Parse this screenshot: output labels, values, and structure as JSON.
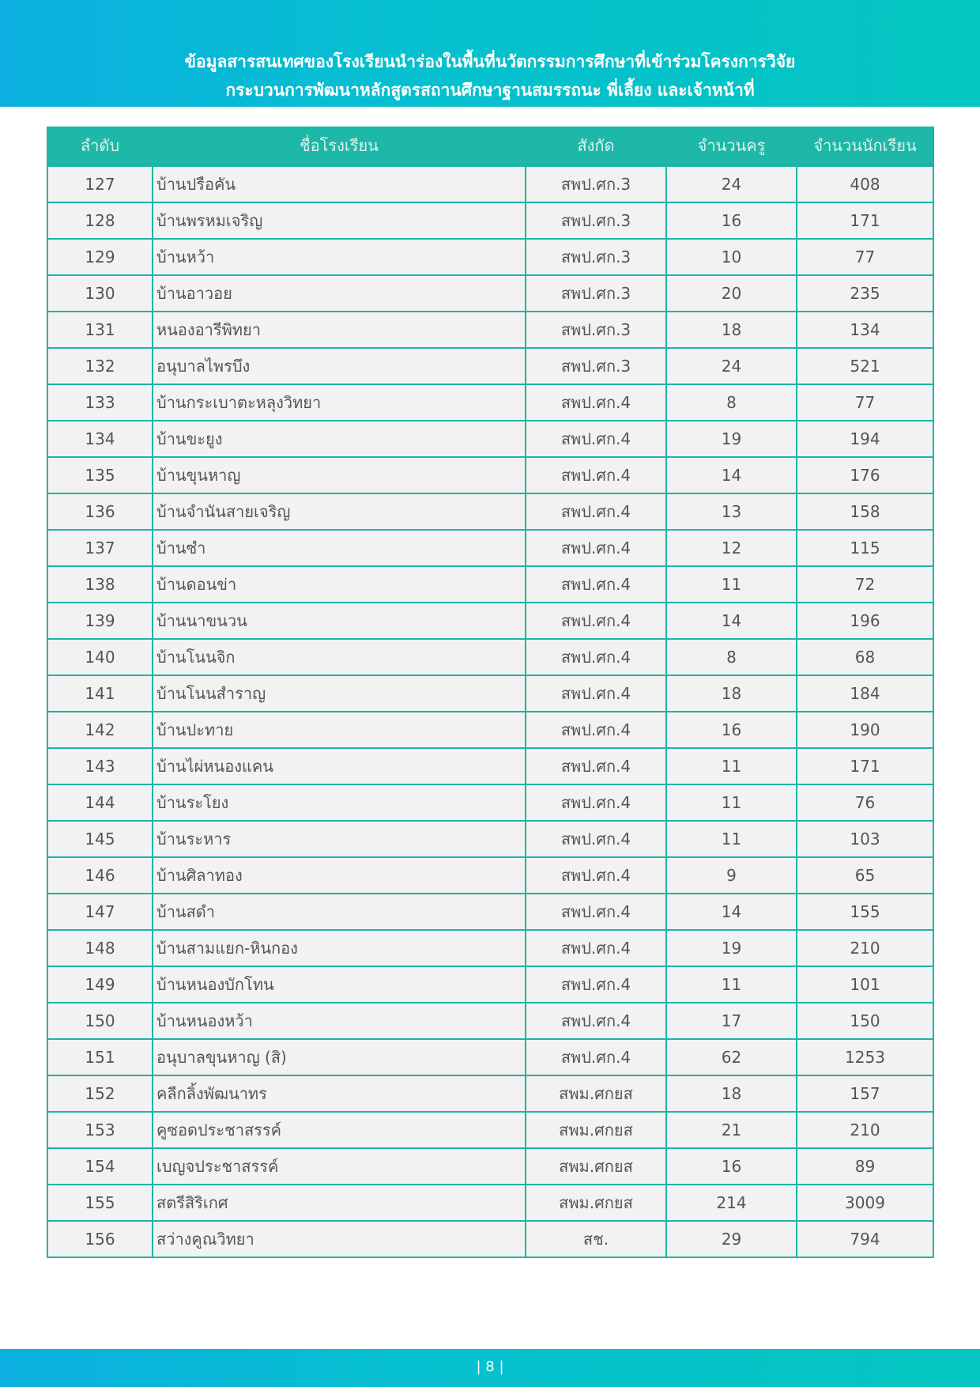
{
  "header": {
    "title_line1": "ข้อมูลสารสนเทศของโรงเรียนนำร่องในพื้นที่นวัตกรรมการศึกษาที่เข้าร่วมโครงการวิจัย",
    "title_line2": "กระบวนการพัฒนาหลักสูตรสถานศึกษาฐานสมรรถนะ พี่เลี้ยง และเจ้าหน้าที่"
  },
  "table": {
    "columns": [
      "ลำดับ",
      "ชื่อโรงเรียน",
      "สังกัด",
      "จำนวนครู",
      "จำนวนนักเรียน"
    ],
    "rows": [
      [
        "127",
        "บ้านปรือคัน",
        "สพป.ศก.3",
        "24",
        "408"
      ],
      [
        "128",
        "บ้านพรหมเจริญ",
        "สพป.ศก.3",
        "16",
        "171"
      ],
      [
        "129",
        "บ้านหว้า",
        "สพป.ศก.3",
        "10",
        "77"
      ],
      [
        "130",
        "บ้านอาวอย",
        "สพป.ศก.3",
        "20",
        "235"
      ],
      [
        "131",
        "หนองอารีพิทยา",
        "สพป.ศก.3",
        "18",
        "134"
      ],
      [
        "132",
        "อนุบาลไพรบึง",
        "สพป.ศก.3",
        "24",
        "521"
      ],
      [
        "133",
        "บ้านกระเบาตะหลุงวิทยา",
        "สพป.ศก.4",
        "8",
        "77"
      ],
      [
        "134",
        "บ้านขะยูง",
        "สพป.ศก.4",
        "19",
        "194"
      ],
      [
        "135",
        "บ้านขุนหาญ",
        "สพป.ศก.4",
        "14",
        "176"
      ],
      [
        "136",
        "บ้านจำนันสายเจริญ",
        "สพป.ศก.4",
        "13",
        "158"
      ],
      [
        "137",
        "บ้านซำ",
        "สพป.ศก.4",
        "12",
        "115"
      ],
      [
        "138",
        "บ้านดอนข่า",
        "สพป.ศก.4",
        "11",
        "72"
      ],
      [
        "139",
        "บ้านนาขนวน",
        "สพป.ศก.4",
        "14",
        "196"
      ],
      [
        "140",
        "บ้านโนนจิก",
        "สพป.ศก.4",
        "8",
        "68"
      ],
      [
        "141",
        "บ้านโนนสำราญ",
        "สพป.ศก.4",
        "18",
        "184"
      ],
      [
        "142",
        "บ้านปะทาย",
        "สพป.ศก.4",
        "16",
        "190"
      ],
      [
        "143",
        "บ้านไผ่หนองแคน",
        "สพป.ศก.4",
        "11",
        "171"
      ],
      [
        "144",
        "บ้านระโยง",
        "สพป.ศก.4",
        "11",
        "76"
      ],
      [
        "145",
        "บ้านระหาร",
        "สพป.ศก.4",
        "11",
        "103"
      ],
      [
        "146",
        "บ้านศิลาทอง",
        "สพป.ศก.4",
        "9",
        "65"
      ],
      [
        "147",
        "บ้านสดำ",
        "สพป.ศก.4",
        "14",
        "155"
      ],
      [
        "148",
        "บ้านสามแยก-หินกอง",
        "สพป.ศก.4",
        "19",
        "210"
      ],
      [
        "149",
        "บ้านหนองบักโทน",
        "สพป.ศก.4",
        "11",
        "101"
      ],
      [
        "150",
        "บ้านหนองหว้า",
        "สพป.ศก.4",
        "17",
        "150"
      ],
      [
        "151",
        "อนุบาลขุนหาญ (สิ)",
        "สพป.ศก.4",
        "62",
        "1253"
      ],
      [
        "152",
        "คลีกลิ้งพัฒนาทร",
        "สพม.ศกยส",
        "18",
        "157"
      ],
      [
        "153",
        "คูซอดประชาสรรค์",
        "สพม.ศกยส",
        "21",
        "210"
      ],
      [
        "154",
        "เบญจประชาสรรค์",
        "สพม.ศกยส",
        "16",
        "89"
      ],
      [
        "155",
        "สตรีสิริเกศ",
        "สพม.ศกยส",
        "214",
        "3009"
      ],
      [
        "156",
        "สว่างคูณวิทยา",
        "สช.",
        "29",
        "794"
      ]
    ]
  },
  "footer": {
    "page_number": "| 8 |"
  },
  "colors": {
    "accent": "#1db8a7",
    "banner_left": "#0bb0e0",
    "banner_right": "#03c6c0"
  }
}
